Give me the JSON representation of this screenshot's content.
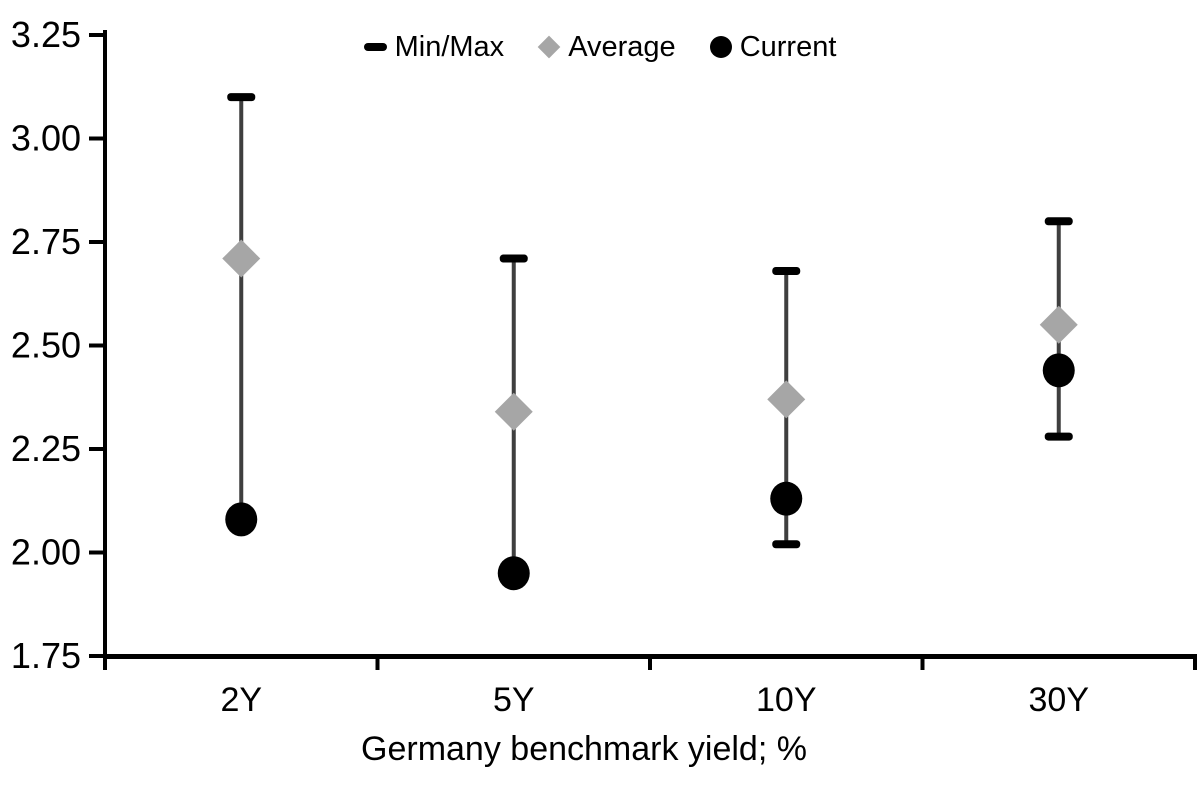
{
  "chart_data": {
    "type": "scatter",
    "subtype": "min-max-range-with-markers",
    "title": "",
    "xlabel": "Germany benchmark yield; %",
    "ylabel": "",
    "categories": [
      "2Y",
      "5Y",
      "10Y",
      "30Y"
    ],
    "ylim": [
      1.75,
      3.25
    ],
    "ytick_values": [
      3.25,
      3.0,
      2.75,
      2.5,
      2.25,
      2.0,
      1.75
    ],
    "ytick_labels": [
      "3.25",
      "3.00",
      "2.75",
      "2.50",
      "2.25",
      "2.00",
      "1.75"
    ],
    "grid": false,
    "legend_position": "top-center",
    "legend": [
      {
        "label": "Min/Max",
        "marker": "dash"
      },
      {
        "label": "Average",
        "marker": "diamond"
      },
      {
        "label": "Current",
        "marker": "circle"
      }
    ],
    "series": [
      {
        "name": "Min/Max",
        "role": "range",
        "max": [
          3.1,
          2.71,
          2.68,
          2.8
        ],
        "min": [
          2.08,
          1.95,
          2.02,
          2.28
        ],
        "min_cap_visible": [
          false,
          false,
          true,
          true
        ],
        "cap_color": "#000000",
        "line_color": "#3f3f3f"
      },
      {
        "name": "Average",
        "role": "diamond-marker",
        "values": [
          2.71,
          2.34,
          2.37,
          2.55
        ],
        "color": "#a6a6a6"
      },
      {
        "name": "Current",
        "role": "circle-marker",
        "values": [
          2.08,
          1.95,
          2.13,
          2.44
        ],
        "color": "#000000"
      }
    ],
    "colors": {
      "axis": "#000000",
      "text": "#000000",
      "background": "#ffffff"
    }
  }
}
